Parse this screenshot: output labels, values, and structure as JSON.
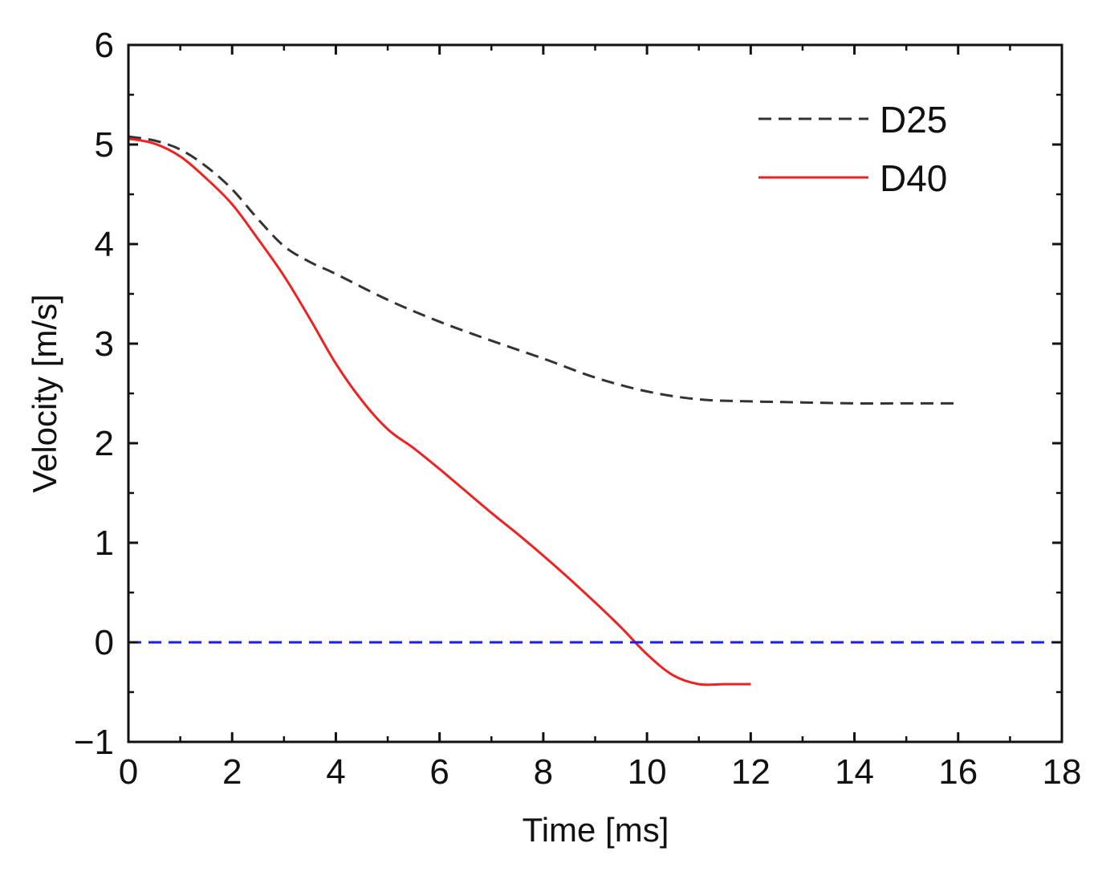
{
  "chart_data": {
    "type": "line",
    "xlabel": "Time [ms]",
    "ylabel": "Velocity [m/s]",
    "xlim": [
      0,
      18
    ],
    "ylim": [
      -1,
      6
    ],
    "x_ticks": [
      "0",
      "2",
      "4",
      "6",
      "8",
      "10",
      "12",
      "14",
      "16",
      "18"
    ],
    "y_ticks": [
      "−1",
      "0",
      "1",
      "2",
      "3",
      "4",
      "5",
      "6"
    ],
    "grid": false,
    "legend_position": "top-right",
    "series": [
      {
        "name": "D25",
        "color": "#333333",
        "dash": "dashed",
        "x": [
          0,
          0.5,
          1,
          1.5,
          2,
          2.5,
          3,
          3.5,
          4,
          5,
          6,
          7,
          8,
          9,
          10,
          11,
          12,
          13,
          14,
          15,
          16
        ],
        "y": [
          5.08,
          5.04,
          4.95,
          4.78,
          4.55,
          4.25,
          3.98,
          3.82,
          3.7,
          3.44,
          3.22,
          3.03,
          2.85,
          2.66,
          2.52,
          2.44,
          2.42,
          2.41,
          2.4,
          2.4,
          2.4
        ]
      },
      {
        "name": "D40",
        "color": "#ee2222",
        "dash": "solid",
        "x": [
          0,
          0.5,
          1,
          1.5,
          2,
          2.5,
          3,
          3.5,
          4,
          4.5,
          5,
          5.5,
          6,
          6.5,
          7,
          7.5,
          8,
          8.5,
          9,
          9.5,
          10,
          10.5,
          11,
          11.5,
          12
        ],
        "y": [
          5.06,
          5.01,
          4.88,
          4.66,
          4.4,
          4.05,
          3.68,
          3.25,
          2.8,
          2.43,
          2.14,
          1.95,
          1.74,
          1.52,
          1.3,
          1.09,
          0.87,
          0.64,
          0.4,
          0.15,
          -0.12,
          -0.33,
          -0.42,
          -0.42,
          -0.42
        ]
      },
      {
        "name": "",
        "color": "#1a1aff",
        "dash": "dashed",
        "x": [
          0,
          18
        ],
        "y": [
          0,
          0
        ]
      }
    ]
  }
}
